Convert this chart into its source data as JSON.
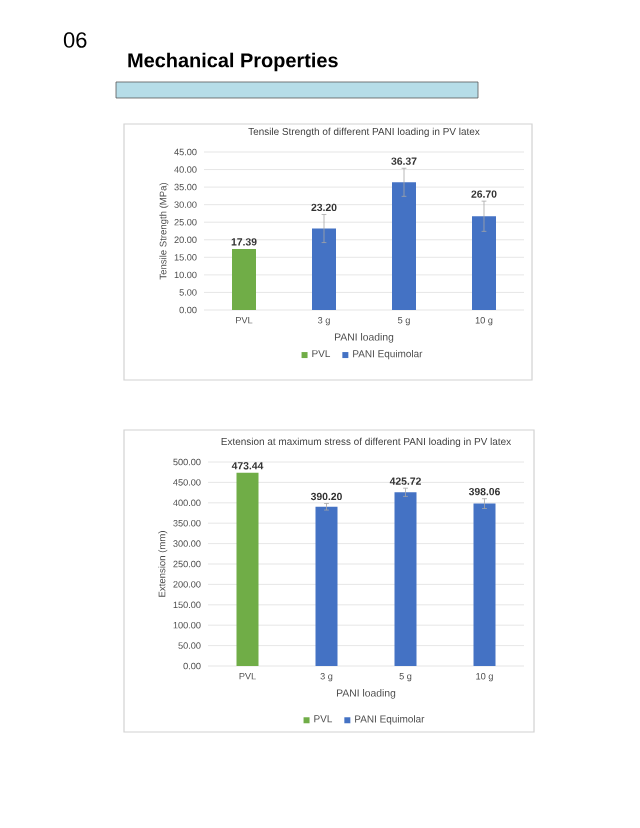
{
  "chart_data": [
    {
      "type": "bar",
      "title": "Tensile Strength of different PANI loading in PV latex",
      "xlabel": "PANI loading",
      "ylabel": "Tensile Strength (MPa)",
      "annotations": [
        "06",
        "Mechanical Properties"
      ],
      "categories": [
        "PVL",
        "3 g",
        "5 g",
        "10 g"
      ],
      "series": [
        {
          "name": "PVL",
          "color": "#70ad47",
          "values": [
            17.39,
            null,
            null,
            null
          ],
          "value_labels": [
            "17.39",
            null,
            null,
            null
          ]
        },
        {
          "name": "PANI Equimolar",
          "color": "#4472c4",
          "values": [
            null,
            23.2,
            36.37,
            26.7
          ],
          "value_labels": [
            null,
            "23.20",
            "36.37",
            "26.70"
          ],
          "errors": [
            null,
            4,
            4,
            4.3
          ]
        }
      ],
      "ylim": [
        0,
        45
      ],
      "yticks": [
        {
          "value": 0,
          "label": "0.00"
        },
        {
          "value": 5,
          "label": "5.00"
        },
        {
          "value": 10,
          "label": "10.00"
        },
        {
          "value": 15,
          "label": "15.00"
        },
        {
          "value": 20,
          "label": "20.00"
        },
        {
          "value": 25,
          "label": "25.00"
        },
        {
          "value": 30,
          "label": "30.00"
        },
        {
          "value": 35,
          "label": "35.00"
        },
        {
          "value": 40,
          "label": "40.00"
        },
        {
          "value": 45,
          "label": "45.00"
        }
      ],
      "grid": "y",
      "legend": "bottom"
    },
    {
      "type": "bar",
      "title": "Extension at maximum stress of different PANI loading in PV latex",
      "xlabel": "PANI loading",
      "ylabel": "Extension (mm)",
      "categories": [
        "PVL",
        "3 g",
        "5 g",
        "10 g"
      ],
      "series": [
        {
          "name": "PVL",
          "color": "#70ad47",
          "values": [
            473.44,
            null,
            null,
            null
          ],
          "value_labels": [
            "473.44",
            null,
            null,
            null
          ]
        },
        {
          "name": "PANI Equimolar",
          "color": "#4472c4",
          "values": [
            null,
            390.2,
            425.72,
            398.06
          ],
          "value_labels": [
            null,
            "390.20",
            "425.72",
            "398.06"
          ],
          "errors": [
            null,
            8,
            10,
            12
          ]
        }
      ],
      "ylim": [
        0,
        500
      ],
      "yticks": [
        {
          "value": 0,
          "label": "0.00"
        },
        {
          "value": 50,
          "label": "50.00"
        },
        {
          "value": 100,
          "label": "100.00"
        },
        {
          "value": 150,
          "label": "150.00"
        },
        {
          "value": 200,
          "label": "200.00"
        },
        {
          "value": 250,
          "label": "250.00"
        },
        {
          "value": 300,
          "label": "300.00"
        },
        {
          "value": 350,
          "label": "350.00"
        },
        {
          "value": 400,
          "label": "400.00"
        },
        {
          "value": 450,
          "label": "450.00"
        },
        {
          "value": 500,
          "label": "500.00"
        }
      ],
      "grid": "y",
      "legend": "bottom"
    }
  ]
}
